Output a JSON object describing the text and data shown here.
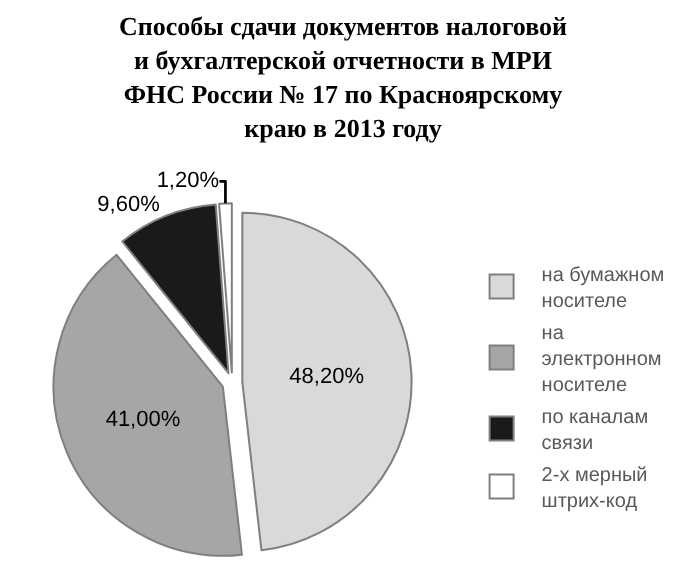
{
  "chart_data": {
    "type": "pie",
    "title": "Способы сдачи документов налоговой и бухгалтерской отчетности в МРИ ФНС России № 17 по Красноярскому краю в 2013 году",
    "categories": [
      "на бумажном носителе",
      "на электронном носителе",
      "по каналам связи",
      "2-х мерный штрих-код"
    ],
    "values": [
      48.2,
      41.0,
      9.6,
      1.2
    ],
    "value_labels": [
      "48,20%",
      "41,00%",
      "9,60%",
      "1,20%"
    ],
    "colors": [
      "#d9d9d9",
      "#a6a6a6",
      "#1a1a1a",
      "#ffffff"
    ],
    "legend": "right"
  }
}
